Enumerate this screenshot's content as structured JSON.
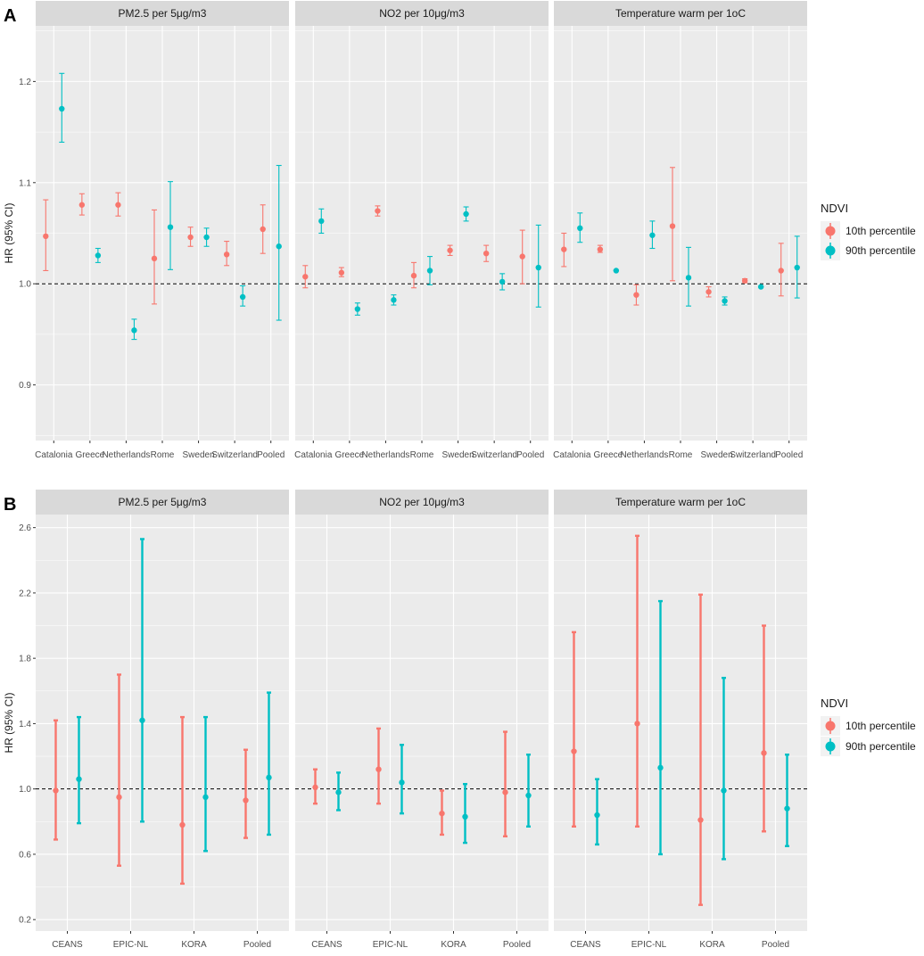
{
  "colors": {
    "series_1": "#F8766D",
    "series_2": "#00BFC4",
    "panel_bg": "#EBEBEB",
    "strip_bg": "#D9D9D9",
    "grid": "#FFFFFF"
  },
  "legend": {
    "title": "NDVI",
    "items": [
      "10th percentile",
      "90th percentile"
    ]
  },
  "chart_data": [
    {
      "label": "A",
      "type": "errorbar",
      "ylabel": "HR (95% CI)",
      "ylim": [
        0.845,
        1.255
      ],
      "yticks": [
        0.9,
        1.0,
        1.1,
        1.2
      ],
      "reference_line": 1.0,
      "categories": [
        "Catalonia",
        "Greece",
        "Netherlands",
        "Rome",
        "Sweden",
        "Switzerland",
        "Pooled"
      ],
      "facets": [
        {
          "title": "PM2.5 per 5μg/m3",
          "series": [
            {
              "name": "10th percentile",
              "est": [
                1.047,
                1.078,
                1.078,
                1.025,
                1.046,
                1.029,
                1.054
              ],
              "lo": [
                1.013,
                1.068,
                1.067,
                0.98,
                1.037,
                1.018,
                1.03
              ],
              "hi": [
                1.083,
                1.089,
                1.09,
                1.073,
                1.056,
                1.042,
                1.078
              ]
            },
            {
              "name": "90th percentile",
              "est": [
                1.173,
                1.028,
                0.954,
                1.056,
                1.046,
                0.987,
                1.037
              ],
              "lo": [
                1.14,
                1.021,
                0.945,
                1.014,
                1.037,
                0.978,
                0.964
              ],
              "hi": [
                1.208,
                1.035,
                0.965,
                1.101,
                1.055,
                0.998,
                1.117
              ]
            }
          ]
        },
        {
          "title": "NO2 per 10μg/m3",
          "series": [
            {
              "name": "10th percentile",
              "est": [
                1.007,
                1.011,
                1.072,
                1.008,
                1.033,
                1.03,
                1.027
              ],
              "lo": [
                0.996,
                1.007,
                1.067,
                0.996,
                1.028,
                1.022,
                1.0
              ],
              "hi": [
                1.018,
                1.016,
                1.077,
                1.021,
                1.038,
                1.038,
                1.053
              ]
            },
            {
              "name": "90th percentile",
              "est": [
                1.062,
                0.975,
                0.984,
                1.013,
                1.069,
                1.002,
                1.016
              ],
              "lo": [
                1.05,
                0.969,
                0.979,
                0.999,
                1.062,
                0.994,
                0.977
              ],
              "hi": [
                1.074,
                0.981,
                0.989,
                1.027,
                1.076,
                1.01,
                1.058
              ]
            }
          ]
        },
        {
          "title": "Temperature warm per 1oC",
          "series": [
            {
              "name": "10th percentile",
              "est": [
                1.034,
                1.034,
                0.989,
                1.057,
                0.992,
                1.003,
                1.013
              ],
              "lo": [
                1.017,
                1.031,
                0.979,
                1.003,
                0.987,
                1.001,
                0.988
              ],
              "hi": [
                1.05,
                1.038,
                0.999,
                1.115,
                0.997,
                1.005,
                1.04
              ]
            },
            {
              "name": "90th percentile",
              "est": [
                1.055,
                1.013,
                1.048,
                1.006,
                0.983,
                0.997,
                1.016
              ],
              "lo": [
                1.041,
                1.013,
                1.035,
                0.978,
                0.979,
                0.997,
                0.986
              ],
              "hi": [
                1.07,
                1.013,
                1.062,
                1.036,
                0.987,
                0.997,
                1.047
              ]
            }
          ]
        }
      ]
    },
    {
      "label": "B",
      "type": "errorbar",
      "ylabel": "HR (95% CI)",
      "ylim": [
        0.13,
        2.68
      ],
      "yticks": [
        0.2,
        0.6,
        1.0,
        1.4,
        1.8,
        2.2,
        2.6
      ],
      "reference_line": 1.0,
      "categories": [
        "CEANS",
        "EPIC-NL",
        "KORA",
        "Pooled"
      ],
      "facets": [
        {
          "title": "PM2.5 per 5μg/m3",
          "series": [
            {
              "name": "10th percentile",
              "est": [
                0.99,
                0.95,
                0.78,
                0.93
              ],
              "lo": [
                0.69,
                0.53,
                0.42,
                0.7
              ],
              "hi": [
                1.42,
                1.7,
                1.44,
                1.24
              ]
            },
            {
              "name": "90th percentile",
              "est": [
                1.06,
                1.42,
                0.95,
                1.07
              ],
              "lo": [
                0.79,
                0.8,
                0.62,
                0.72
              ],
              "hi": [
                1.44,
                2.53,
                1.44,
                1.59
              ]
            }
          ]
        },
        {
          "title": "NO2 per 10μg/m3",
          "series": [
            {
              "name": "10th percentile",
              "est": [
                1.01,
                1.12,
                0.85,
                0.98
              ],
              "lo": [
                0.91,
                0.91,
                0.72,
                0.71
              ],
              "hi": [
                1.12,
                1.37,
                0.99,
                1.35
              ]
            },
            {
              "name": "90th percentile",
              "est": [
                0.98,
                1.04,
                0.83,
                0.96
              ],
              "lo": [
                0.87,
                0.85,
                0.67,
                0.77
              ],
              "hi": [
                1.1,
                1.27,
                1.03,
                1.21
              ]
            }
          ]
        },
        {
          "title": "Temperature warm per 1oC",
          "series": [
            {
              "name": "10th percentile",
              "est": [
                1.23,
                1.4,
                0.81,
                1.22
              ],
              "lo": [
                0.77,
                0.77,
                0.29,
                0.74
              ],
              "hi": [
                1.96,
                2.55,
                2.19,
                2.0
              ]
            },
            {
              "name": "90th percentile",
              "est": [
                0.84,
                1.13,
                0.99,
                0.88
              ],
              "lo": [
                0.66,
                0.6,
                0.57,
                0.65
              ],
              "hi": [
                1.06,
                2.15,
                1.68,
                1.21
              ]
            }
          ]
        }
      ]
    }
  ]
}
